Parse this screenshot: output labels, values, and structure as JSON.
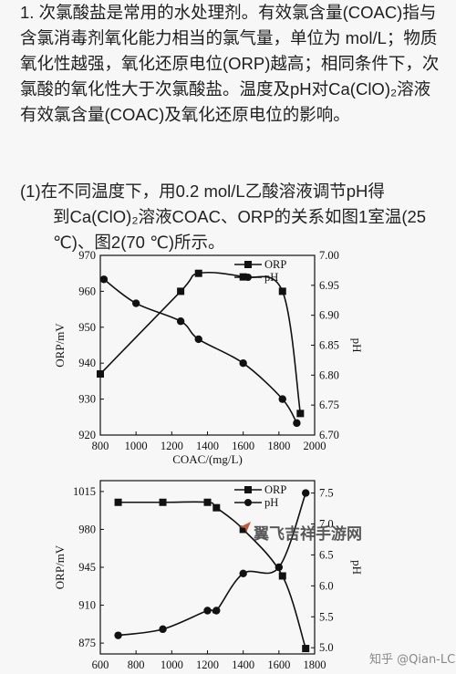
{
  "text": {
    "p1": "1. 次氯酸盐是常用的水处理剂。有效氯含量(COAC)指与含氯消毒剂氧化能力相当的氯气量，单位为 mol/L；物质氧化性越强，氧化还原电位(ORP)越高；相同条件下，次氯酸的氧化性大于次氯酸盐。温度及pH对Ca(ClO)₂溶液有效氯含量(COAC)及氧化还原电位的影响。",
    "p2_line1": "(1)在不同温度下，用0.2 mol/L乙酸溶液调节pH得",
    "p2_rest": "到Ca(ClO)₂溶液COAC、ORP的关系如图1室温(25 ℃)、图2(70 ℃)所示。"
  },
  "watermark": "翼飞吉祥手游网",
  "footer": "知乎 @Qian-LC",
  "chart_data": [
    {
      "type": "line",
      "x": [
        800,
        1250,
        1350,
        1600,
        1820,
        1900,
        1920
      ],
      "series": [
        {
          "name": "ORP",
          "axis": "left",
          "marker": "square",
          "x": [
            800,
            1250,
            1350,
            1600,
            1820,
            1920
          ],
          "values": [
            937,
            960,
            965,
            964,
            960,
            926
          ]
        },
        {
          "name": "pH",
          "axis": "right",
          "marker": "circle",
          "x": [
            820,
            1000,
            1250,
            1350,
            1600,
            1820,
            1900
          ],
          "values": [
            6.96,
            6.92,
            6.89,
            6.86,
            6.82,
            6.76,
            6.72
          ]
        }
      ],
      "xlabel": "COAC/(mg/L)",
      "ylabel": "ORP/mV",
      "y2label": "pH",
      "xticks": [
        "800",
        "1000",
        "1200",
        "1400",
        "1600",
        "1800",
        "2000"
      ],
      "yticks": [
        "920",
        "930",
        "940",
        "950",
        "960",
        "970"
      ],
      "y2ticks": [
        "6.70",
        "6.75",
        "6.80",
        "6.85",
        "6.90",
        "6.95",
        "7.00"
      ],
      "xlim": [
        800,
        2000
      ],
      "ylim": [
        920,
        970
      ],
      "y2lim": [
        6.7,
        7.0
      ],
      "legend": "top-right"
    },
    {
      "type": "line",
      "series": [
        {
          "name": "ORP",
          "axis": "left",
          "marker": "square",
          "x": [
            700,
            950,
            1200,
            1250,
            1400,
            1620,
            1750
          ],
          "values": [
            1005,
            1005,
            1005,
            1000,
            980,
            937,
            870
          ]
        },
        {
          "name": "pH",
          "axis": "right",
          "marker": "circle",
          "x": [
            700,
            950,
            1200,
            1250,
            1400,
            1600,
            1750
          ],
          "values": [
            5.2,
            5.3,
            5.6,
            5.6,
            6.2,
            6.3,
            7.5
          ]
        }
      ],
      "xlabel": "",
      "ylabel": "ORP/mV",
      "y2label": "pH",
      "xticks": [
        "600",
        "800",
        "1000",
        "1200",
        "1400",
        "1600",
        "1800"
      ],
      "yticks": [
        "875",
        "910",
        "945",
        "980",
        "1015"
      ],
      "y2ticks": [
        "5.0",
        "5.5",
        "6.0",
        "6.5",
        "7.0",
        "7.5"
      ],
      "xlim": [
        600,
        1800
      ],
      "ylim": [
        865,
        1025
      ],
      "y2lim": [
        4.9,
        7.7
      ],
      "legend": "top-right"
    }
  ]
}
